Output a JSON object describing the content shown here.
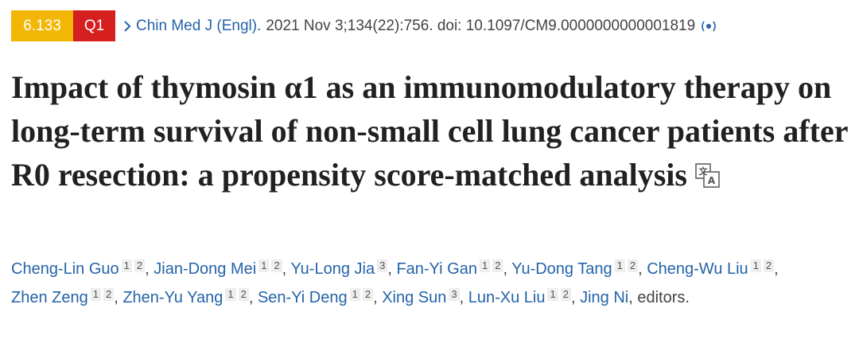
{
  "header": {
    "impact_factor": "6.133",
    "quartile": "Q1",
    "journal": "Chin Med J (Engl).",
    "citation": "2021 Nov 3;134(22):756. doi: 10.1097/CM9.0000000000001819"
  },
  "title": "Impact of thymosin α1 as an immunomodulatory therapy on long-term survival of non-small cell lung cancer patients after R0 resection: a propensity score-matched analysis",
  "authors": [
    {
      "name": "Cheng-Lin Guo",
      "affiliations": [
        "1",
        "2"
      ]
    },
    {
      "name": "Jian-Dong Mei",
      "affiliations": [
        "1",
        "2"
      ]
    },
    {
      "name": "Yu-Long Jia",
      "affiliations": [
        "3"
      ]
    },
    {
      "name": "Fan-Yi Gan",
      "affiliations": [
        "1",
        "2"
      ]
    },
    {
      "name": "Yu-Dong Tang",
      "affiliations": [
        "1",
        "2"
      ]
    },
    {
      "name": "Cheng-Wu Liu",
      "affiliations": [
        "1",
        "2"
      ]
    },
    {
      "name": "Zhen Zeng",
      "affiliations": [
        "1",
        "2"
      ]
    },
    {
      "name": "Zhen-Yu Yang",
      "affiliations": [
        "1",
        "2"
      ]
    },
    {
      "name": "Sen-Yi Deng",
      "affiliations": [
        "1",
        "2"
      ]
    },
    {
      "name": "Xing Sun",
      "affiliations": [
        "3"
      ]
    },
    {
      "name": "Lun-Xu Liu",
      "affiliations": [
        "1",
        "2"
      ]
    },
    {
      "name": "Jing Ni",
      "affiliations": []
    }
  ],
  "editors_label": "editors."
}
